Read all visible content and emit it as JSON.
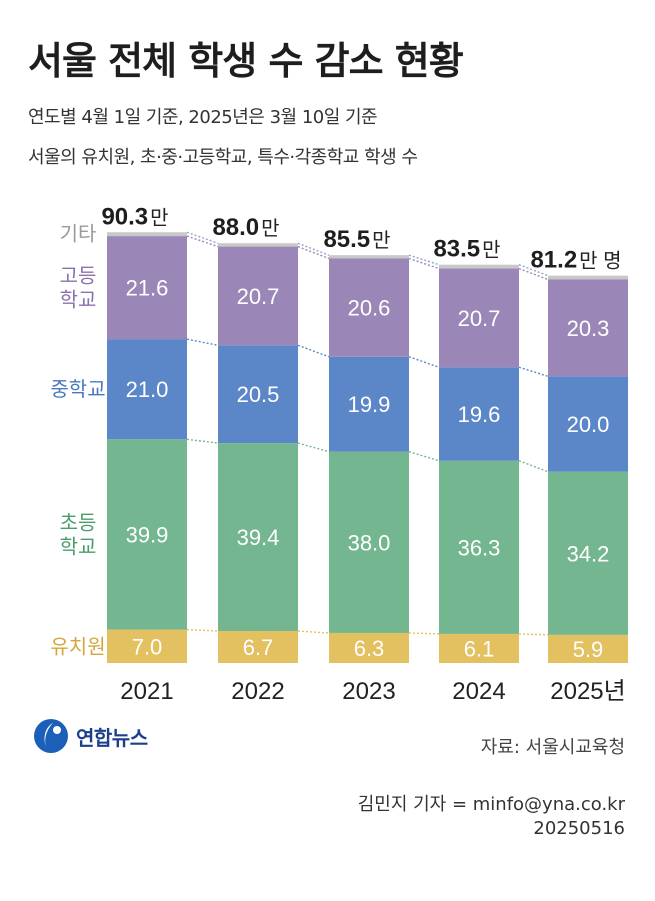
{
  "title": "서울 전체 학생 수 감소 현황",
  "subtitle_line1": "연도별 4월 1일 기준, 2025년은 3월 10일 기준",
  "subtitle_line2": "서울의 유치원, 초·중·고등학교, 특수·각종학교 학생 수",
  "source": "자료: 서울시교육청",
  "credit": "김민지 기자 = minfo@yna.co.kr",
  "date": "20250516",
  "logo": {
    "name": "연합뉴스",
    "icon": "yonhap-logo-icon"
  },
  "chart_data": {
    "type": "bar",
    "stacked": true,
    "unit": "만",
    "unit_last": "만 명",
    "categories": [
      "2021",
      "2022",
      "2023",
      "2024",
      "2025년"
    ],
    "totals": [
      90.3,
      88.0,
      85.5,
      83.5,
      81.2
    ],
    "total_labels": [
      "90.3",
      "88.0",
      "85.5",
      "83.5",
      "81.2"
    ],
    "series": [
      {
        "name": "유치원",
        "label_lines": [
          "유치원"
        ],
        "color": "#e3c060",
        "label_color": "#d4a73a",
        "values": [
          7.0,
          6.7,
          6.3,
          6.1,
          5.9
        ],
        "value_labels": [
          "7.0",
          "6.7",
          "6.3",
          "6.1",
          "5.9"
        ]
      },
      {
        "name": "초등학교",
        "label_lines": [
          "초등",
          "학교"
        ],
        "color": "#74b68f",
        "label_color": "#4a9e6c",
        "values": [
          39.9,
          39.4,
          38.0,
          36.3,
          34.2
        ],
        "value_labels": [
          "39.9",
          "39.4",
          "38.0",
          "36.3",
          "34.2"
        ]
      },
      {
        "name": "중학교",
        "label_lines": [
          "중학교"
        ],
        "color": "#5b87c8",
        "label_color": "#4a78bf",
        "values": [
          21.0,
          20.5,
          19.9,
          19.6,
          20.0
        ],
        "value_labels": [
          "21.0",
          "20.5",
          "19.9",
          "19.6",
          "20.0"
        ]
      },
      {
        "name": "고등학교",
        "label_lines": [
          "고등",
          "학교"
        ],
        "color": "#9b86b8",
        "label_color": "#8a72ad",
        "values": [
          21.6,
          20.7,
          20.6,
          20.7,
          20.3
        ],
        "value_labels": [
          "21.6",
          "20.7",
          "20.6",
          "20.7",
          "20.3"
        ]
      },
      {
        "name": "기타",
        "label_lines": [
          "기타"
        ],
        "color": "#c8c8c8",
        "label_color": "#9a9a9a",
        "values": [
          0.8,
          0.7,
          0.7,
          0.8,
          0.8
        ],
        "value_labels": []
      }
    ],
    "connector_lines": "dotted"
  }
}
